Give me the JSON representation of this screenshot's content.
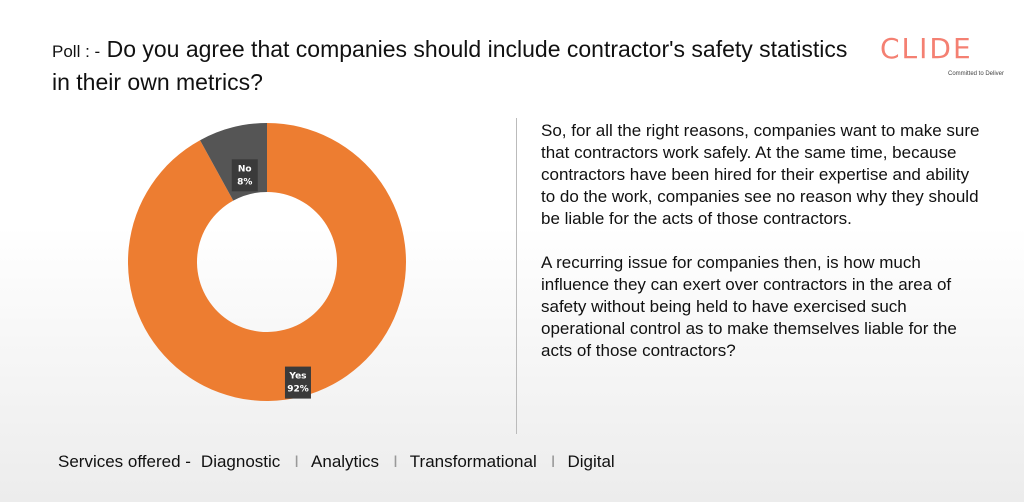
{
  "header": {
    "poll_prefix": "Poll : -",
    "question": "Do you agree that companies should include contractor's safety statistics in their own metrics?"
  },
  "logo": {
    "word": "CLIDE",
    "tagline": "Committed to Deliver",
    "color": "#f36a5a"
  },
  "chart_data": {
    "type": "pie",
    "donut": true,
    "categories": [
      "Yes",
      "No"
    ],
    "values": [
      92,
      8
    ],
    "labels": [
      "Yes\n92%",
      "No\n8%"
    ],
    "colors": [
      "#ed7d31",
      "#555555"
    ]
  },
  "body": {
    "paragraphs": [
      "So, for all the right reasons, companies want to make sure that contractors work safely. At the same time, because contractors have been hired for their expertise and ability to do the work, companies see no reason why they should be liable for the acts of those contractors.",
      "A recurring issue for companies then, is how much influence they can exert over contractors in the area of safety without being held to have exercised such operational control as to make themselves liable for the acts of those contractors?"
    ]
  },
  "footer": {
    "label": "Services offered -",
    "items": [
      "Diagnostic",
      "Analytics",
      "Transformational",
      "Digital"
    ],
    "separator": "I"
  }
}
